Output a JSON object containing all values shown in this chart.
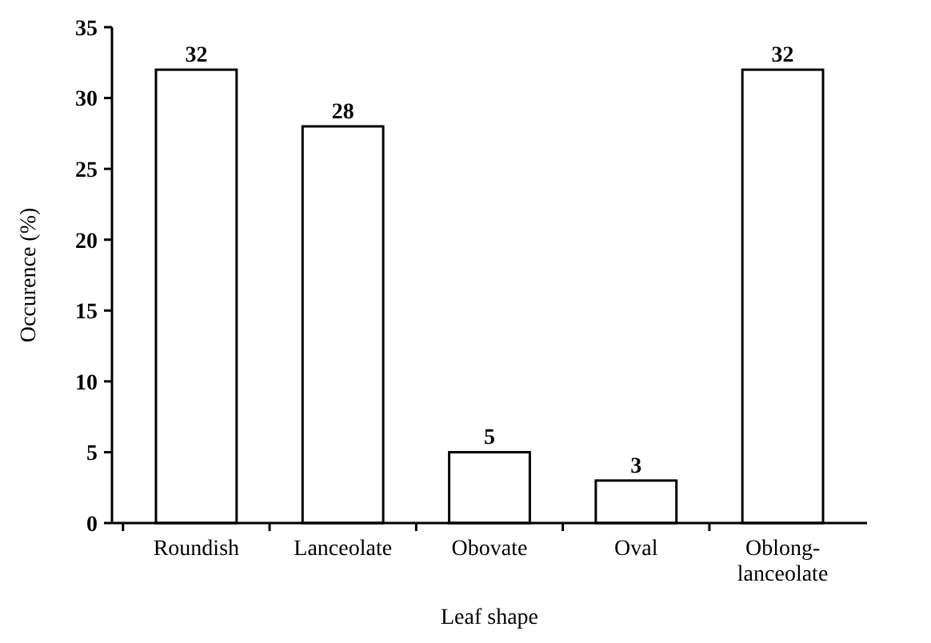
{
  "chart_data": {
    "type": "bar",
    "xlabel": "Leaf shape",
    "ylabel": "Occurence (%)",
    "categories": [
      "Roundish",
      "Lanceolate",
      "Obovate",
      "Oval",
      "Oblong-lanceolate"
    ],
    "values": [
      32,
      28,
      5,
      3,
      32
    ],
    "color": "#ffffff",
    "data_labels": true,
    "ylim": [
      0,
      35
    ],
    "yticks": [
      0,
      5,
      10,
      15,
      20,
      25,
      30,
      35
    ]
  }
}
